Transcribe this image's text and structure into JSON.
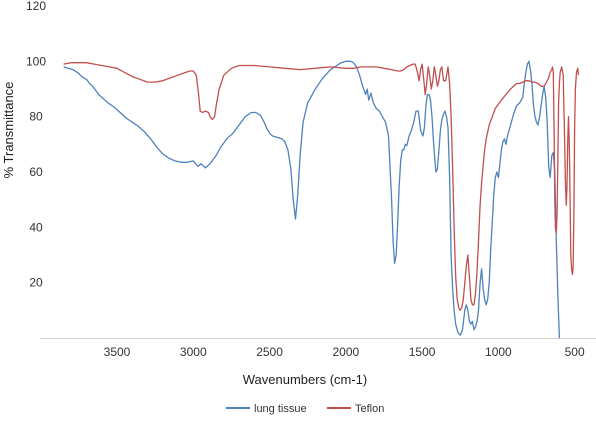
{
  "chart_data": {
    "type": "line",
    "title": "",
    "xlabel": "Wavenumbers (cm-1)",
    "ylabel": "% Transmittance",
    "xlim": [
      3900,
      360
    ],
    "ylim": [
      0,
      120
    ],
    "x_reversed": true,
    "x_ticks": [
      3500,
      3000,
      2500,
      2000,
      1500,
      1000,
      500
    ],
    "y_ticks": [
      20,
      40,
      60,
      80,
      100,
      120
    ],
    "grid": false,
    "legend_position": "bottom",
    "series": [
      {
        "name": "lung tissue",
        "color": "#4f81bd",
        "points": [
          [
            3850,
            98
          ],
          [
            3820,
            97.5
          ],
          [
            3790,
            97
          ],
          [
            3760,
            96
          ],
          [
            3740,
            95
          ],
          [
            3720,
            94
          ],
          [
            3700,
            93.5
          ],
          [
            3680,
            92
          ],
          [
            3660,
            91
          ],
          [
            3640,
            89.5
          ],
          [
            3620,
            88
          ],
          [
            3600,
            87
          ],
          [
            3560,
            85
          ],
          [
            3520,
            83.5
          ],
          [
            3480,
            81.5
          ],
          [
            3440,
            79.5
          ],
          [
            3400,
            78
          ],
          [
            3360,
            76.5
          ],
          [
            3320,
            74.5
          ],
          [
            3280,
            72
          ],
          [
            3240,
            69
          ],
          [
            3200,
            66.5
          ],
          [
            3160,
            65
          ],
          [
            3120,
            64
          ],
          [
            3080,
            63.5
          ],
          [
            3040,
            63.5
          ],
          [
            3000,
            64
          ],
          [
            2970,
            62
          ],
          [
            2950,
            63
          ],
          [
            2920,
            61.5
          ],
          [
            2890,
            63
          ],
          [
            2870,
            64.5
          ],
          [
            2850,
            66
          ],
          [
            2820,
            69
          ],
          [
            2780,
            72
          ],
          [
            2740,
            74
          ],
          [
            2700,
            77
          ],
          [
            2660,
            80
          ],
          [
            2620,
            81.5
          ],
          [
            2590,
            81.5
          ],
          [
            2560,
            80.5
          ],
          [
            2540,
            78.5
          ],
          [
            2520,
            76
          ],
          [
            2500,
            74
          ],
          [
            2480,
            73
          ],
          [
            2450,
            72.5
          ],
          [
            2420,
            72
          ],
          [
            2400,
            71
          ],
          [
            2380,
            68
          ],
          [
            2360,
            61
          ],
          [
            2345,
            50
          ],
          [
            2330,
            43
          ],
          [
            2315,
            52
          ],
          [
            2300,
            66
          ],
          [
            2280,
            78
          ],
          [
            2250,
            85
          ],
          [
            2200,
            90
          ],
          [
            2150,
            94
          ],
          [
            2100,
            97
          ],
          [
            2060,
            98.5
          ],
          [
            2030,
            99.5
          ],
          [
            2000,
            100
          ],
          [
            1970,
            100
          ],
          [
            1950,
            99.5
          ],
          [
            1930,
            98
          ],
          [
            1910,
            95
          ],
          [
            1890,
            91
          ],
          [
            1870,
            88
          ],
          [
            1860,
            90
          ],
          [
            1850,
            86
          ],
          [
            1835,
            88.5
          ],
          [
            1820,
            85
          ],
          [
            1800,
            83
          ],
          [
            1780,
            82
          ],
          [
            1760,
            80
          ],
          [
            1740,
            78
          ],
          [
            1720,
            73
          ],
          [
            1700,
            50
          ],
          [
            1690,
            35
          ],
          [
            1680,
            27
          ],
          [
            1670,
            30
          ],
          [
            1660,
            42
          ],
          [
            1650,
            55
          ],
          [
            1640,
            64
          ],
          [
            1630,
            68
          ],
          [
            1620,
            68
          ],
          [
            1610,
            70
          ],
          [
            1600,
            69.5
          ],
          [
            1585,
            73
          ],
          [
            1570,
            75
          ],
          [
            1555,
            78
          ],
          [
            1540,
            82
          ],
          [
            1525,
            82
          ],
          [
            1510,
            75
          ],
          [
            1495,
            73
          ],
          [
            1485,
            76
          ],
          [
            1475,
            84
          ],
          [
            1465,
            88
          ],
          [
            1455,
            88
          ],
          [
            1445,
            86
          ],
          [
            1435,
            80
          ],
          [
            1425,
            71
          ],
          [
            1410,
            60
          ],
          [
            1400,
            61
          ],
          [
            1390,
            68
          ],
          [
            1380,
            75
          ],
          [
            1370,
            79
          ],
          [
            1360,
            81
          ],
          [
            1350,
            82
          ],
          [
            1340,
            80
          ],
          [
            1330,
            76
          ],
          [
            1320,
            58
          ],
          [
            1310,
            30
          ],
          [
            1300,
            18
          ],
          [
            1290,
            10
          ],
          [
            1280,
            5
          ],
          [
            1265,
            2
          ],
          [
            1250,
            1
          ],
          [
            1235,
            3
          ],
          [
            1220,
            10
          ],
          [
            1210,
            12
          ],
          [
            1200,
            10
          ],
          [
            1190,
            6
          ],
          [
            1180,
            5
          ],
          [
            1170,
            6
          ],
          [
            1160,
            3
          ],
          [
            1150,
            4
          ],
          [
            1140,
            6
          ],
          [
            1130,
            10
          ],
          [
            1120,
            20
          ],
          [
            1110,
            25
          ],
          [
            1100,
            18
          ],
          [
            1090,
            14
          ],
          [
            1080,
            12
          ],
          [
            1070,
            14
          ],
          [
            1060,
            20
          ],
          [
            1050,
            32
          ],
          [
            1040,
            42
          ],
          [
            1030,
            52
          ],
          [
            1020,
            58
          ],
          [
            1010,
            60
          ],
          [
            1000,
            58
          ],
          [
            990,
            63
          ],
          [
            980,
            68
          ],
          [
            970,
            71
          ],
          [
            960,
            72
          ],
          [
            950,
            70
          ],
          [
            940,
            73
          ],
          [
            920,
            77
          ],
          [
            900,
            81
          ],
          [
            880,
            84
          ],
          [
            860,
            85
          ],
          [
            840,
            87
          ],
          [
            830,
            92
          ],
          [
            820,
            96
          ],
          [
            810,
            99
          ],
          [
            800,
            100
          ],
          [
            790,
            97
          ],
          [
            780,
            92
          ],
          [
            770,
            84
          ],
          [
            760,
            80
          ],
          [
            750,
            78
          ],
          [
            740,
            77
          ],
          [
            730,
            80
          ],
          [
            720,
            84
          ],
          [
            710,
            88
          ],
          [
            700,
            91
          ],
          [
            690,
            87
          ],
          [
            680,
            78
          ],
          [
            670,
            62
          ],
          [
            660,
            58
          ],
          [
            650,
            66
          ],
          [
            640,
            67
          ],
          [
            630,
            60
          ],
          [
            620,
            35
          ],
          [
            610,
            15
          ],
          [
            600,
            0
          ]
        ]
      },
      {
        "name": "Teflon",
        "color": "#c0504d",
        "points": [
          [
            3850,
            99
          ],
          [
            3800,
            99.5
          ],
          [
            3750,
            99.5
          ],
          [
            3700,
            99.5
          ],
          [
            3650,
            99
          ],
          [
            3600,
            98.5
          ],
          [
            3550,
            98
          ],
          [
            3500,
            97.5
          ],
          [
            3450,
            96
          ],
          [
            3400,
            94.5
          ],
          [
            3350,
            93.5
          ],
          [
            3300,
            92.5
          ],
          [
            3250,
            92.5
          ],
          [
            3200,
            93
          ],
          [
            3150,
            94
          ],
          [
            3100,
            95
          ],
          [
            3050,
            96
          ],
          [
            3020,
            96.5
          ],
          [
            3000,
            96.5
          ],
          [
            2980,
            95
          ],
          [
            2965,
            88
          ],
          [
            2955,
            82
          ],
          [
            2940,
            81.5
          ],
          [
            2920,
            82
          ],
          [
            2900,
            81.5
          ],
          [
            2890,
            80
          ],
          [
            2875,
            79
          ],
          [
            2860,
            80
          ],
          [
            2850,
            84
          ],
          [
            2830,
            90
          ],
          [
            2800,
            95
          ],
          [
            2750,
            97.5
          ],
          [
            2700,
            98.5
          ],
          [
            2600,
            98.5
          ],
          [
            2500,
            98
          ],
          [
            2400,
            97.5
          ],
          [
            2300,
            97
          ],
          [
            2200,
            97.5
          ],
          [
            2100,
            98
          ],
          [
            2000,
            97.5
          ],
          [
            1950,
            97.5
          ],
          [
            1900,
            98
          ],
          [
            1850,
            98
          ],
          [
            1800,
            98
          ],
          [
            1750,
            97.5
          ],
          [
            1700,
            97
          ],
          [
            1660,
            96.5
          ],
          [
            1640,
            96.5
          ],
          [
            1620,
            97
          ],
          [
            1600,
            98
          ],
          [
            1580,
            98.5
          ],
          [
            1560,
            99
          ],
          [
            1545,
            99
          ],
          [
            1530,
            96
          ],
          [
            1520,
            93
          ],
          [
            1510,
            97
          ],
          [
            1500,
            99
          ],
          [
            1490,
            94
          ],
          [
            1480,
            88
          ],
          [
            1470,
            92
          ],
          [
            1460,
            98
          ],
          [
            1450,
            95
          ],
          [
            1440,
            90
          ],
          [
            1430,
            93
          ],
          [
            1420,
            98
          ],
          [
            1410,
            95
          ],
          [
            1400,
            91
          ],
          [
            1390,
            93
          ],
          [
            1380,
            97
          ],
          [
            1370,
            98
          ],
          [
            1360,
            93
          ],
          [
            1345,
            93
          ],
          [
            1330,
            98
          ],
          [
            1320,
            92
          ],
          [
            1310,
            80
          ],
          [
            1300,
            62
          ],
          [
            1290,
            40
          ],
          [
            1280,
            22
          ],
          [
            1270,
            14
          ],
          [
            1260,
            11
          ],
          [
            1250,
            10
          ],
          [
            1240,
            11
          ],
          [
            1230,
            14
          ],
          [
            1220,
            20
          ],
          [
            1210,
            26
          ],
          [
            1200,
            30
          ],
          [
            1190,
            22
          ],
          [
            1180,
            14
          ],
          [
            1170,
            12
          ],
          [
            1160,
            12
          ],
          [
            1150,
            16
          ],
          [
            1140,
            24
          ],
          [
            1130,
            35
          ],
          [
            1120,
            48
          ],
          [
            1110,
            56
          ],
          [
            1100,
            62
          ],
          [
            1090,
            68
          ],
          [
            1080,
            72
          ],
          [
            1060,
            77
          ],
          [
            1040,
            80
          ],
          [
            1020,
            83
          ],
          [
            1000,
            84.5
          ],
          [
            980,
            86
          ],
          [
            950,
            88
          ],
          [
            920,
            90
          ],
          [
            900,
            91
          ],
          [
            880,
            92
          ],
          [
            860,
            92
          ],
          [
            840,
            92.5
          ],
          [
            820,
            93
          ],
          [
            800,
            93
          ],
          [
            780,
            92.5
          ],
          [
            760,
            92.5
          ],
          [
            740,
            92
          ],
          [
            720,
            91
          ],
          [
            700,
            91
          ],
          [
            690,
            92
          ],
          [
            680,
            93
          ],
          [
            670,
            94
          ],
          [
            660,
            96
          ],
          [
            650,
            97
          ],
          [
            645,
            98
          ],
          [
            640,
            96
          ],
          [
            635,
            75
          ],
          [
            630,
            50
          ],
          [
            626,
            40
          ],
          [
            620,
            38
          ],
          [
            615,
            45
          ],
          [
            610,
            65
          ],
          [
            605,
            85
          ],
          [
            600,
            92
          ],
          [
            595,
            96
          ],
          [
            585,
            98
          ],
          [
            575,
            95
          ],
          [
            565,
            70
          ],
          [
            560,
            55
          ],
          [
            555,
            48
          ],
          [
            550,
            55
          ],
          [
            545,
            72
          ],
          [
            540,
            80
          ],
          [
            535,
            70
          ],
          [
            530,
            50
          ],
          [
            525,
            30
          ],
          [
            520,
            25
          ],
          [
            515,
            23
          ],
          [
            510,
            25
          ],
          [
            505,
            45
          ],
          [
            500,
            75
          ],
          [
            495,
            90
          ],
          [
            488,
            96
          ],
          [
            480,
            97.5
          ],
          [
            475,
            95
          ]
        ]
      }
    ]
  }
}
